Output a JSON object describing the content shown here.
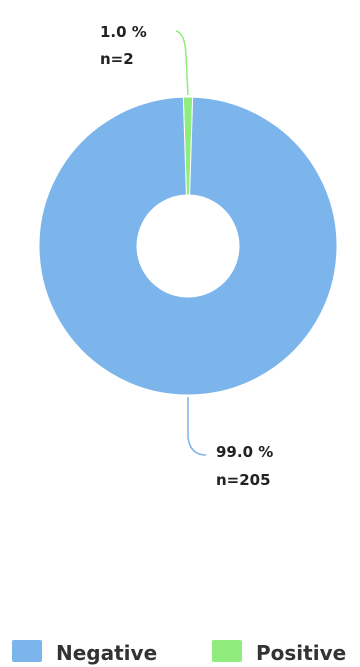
{
  "chart_data": {
    "type": "pie",
    "subtype": "donut",
    "slices": [
      {
        "name": "Negative",
        "percent": 99.0,
        "n": 205,
        "color": "#7cb5ec",
        "label_line1": "99.0 %",
        "label_line2": "n=205"
      },
      {
        "name": "Positive",
        "percent": 1.0,
        "n": 2,
        "color": "#90ed7d",
        "label_line1": "1.0 %",
        "label_line2": "n=2"
      }
    ],
    "legend": {
      "placement": "bottom",
      "items": [
        {
          "label": "Negative",
          "color": "#7cb5ec"
        },
        {
          "label": "Positive",
          "color": "#90ed7d"
        }
      ]
    }
  }
}
